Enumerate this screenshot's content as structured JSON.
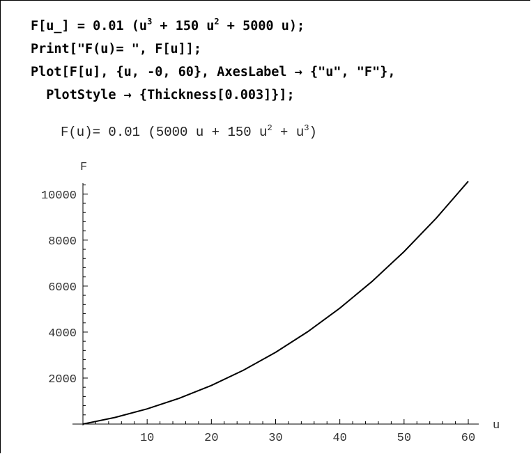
{
  "input": {
    "line1": {
      "pre": "F[u_] = 0.01 (u",
      "sup1": "3",
      "mid1": " + 150 u",
      "sup2": "2",
      "post": " + 5000 u);"
    },
    "line2": "Print[\"F(u)= \", F[u]];",
    "line3": "Plot[F[u], {u, -0, 60}, AxesLabel → {\"u\", \"F\"},",
    "line4": "  PlotStyle → {Thickness[0.003]}];"
  },
  "output": {
    "pre": "F(u)= 0.01 (5000 u + 150 u",
    "sup1": "2",
    "mid": " + u",
    "sup2": "3",
    "post": ")"
  },
  "chart_data": {
    "type": "line",
    "title": "",
    "xlabel": "u",
    "ylabel": "F",
    "xlim": [
      0,
      60
    ],
    "ylim": [
      0,
      10600
    ],
    "xticks": [
      10,
      20,
      30,
      40,
      50,
      60
    ],
    "yticks": [
      2000,
      4000,
      6000,
      8000,
      10000
    ],
    "series": [
      {
        "x": [
          0,
          5,
          10,
          15,
          20,
          25,
          30,
          35,
          40,
          45,
          50,
          55,
          60
        ],
        "y": [
          0,
          288.75,
          660,
          1121.25,
          1680,
          2343.75,
          3120,
          4016.25,
          5040,
          6198.75,
          7500,
          8951.25,
          10560
        ]
      }
    ],
    "line_color": "#000000",
    "grid": false
  }
}
